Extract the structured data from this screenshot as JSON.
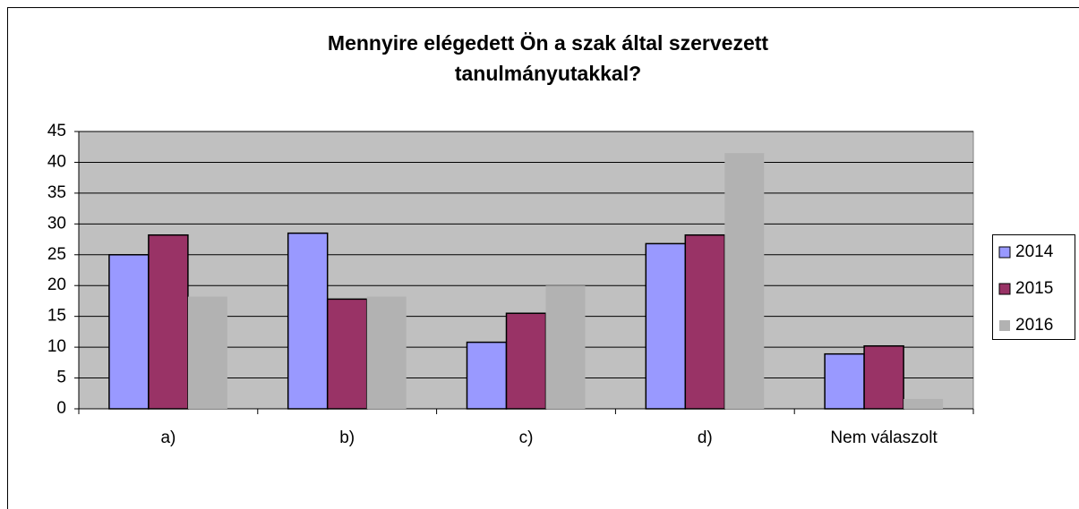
{
  "chart_data": {
    "type": "bar",
    "title": [
      "Mennyire elégedett Ön a szak által szervezett",
      "tanulmányutakkal?"
    ],
    "categories": [
      "a)",
      "b)",
      "c)",
      "d)",
      "Nem válaszolt"
    ],
    "series": [
      {
        "name": "2014",
        "color": "#9999ff",
        "values": [
          25,
          28.5,
          10.8,
          26.8,
          8.9
        ]
      },
      {
        "name": "2015",
        "color": "#993366",
        "values": [
          28.2,
          17.8,
          15.5,
          28.2,
          10.2
        ]
      },
      {
        "name": "2016",
        "color": "#b2b2b2",
        "values": [
          18.2,
          18.2,
          20,
          41.5,
          1.6
        ]
      }
    ],
    "ylim": [
      0,
      45
    ],
    "yticks": [
      0,
      5,
      10,
      15,
      20,
      25,
      30,
      35,
      40,
      45
    ],
    "grid": true,
    "legend": "right"
  }
}
